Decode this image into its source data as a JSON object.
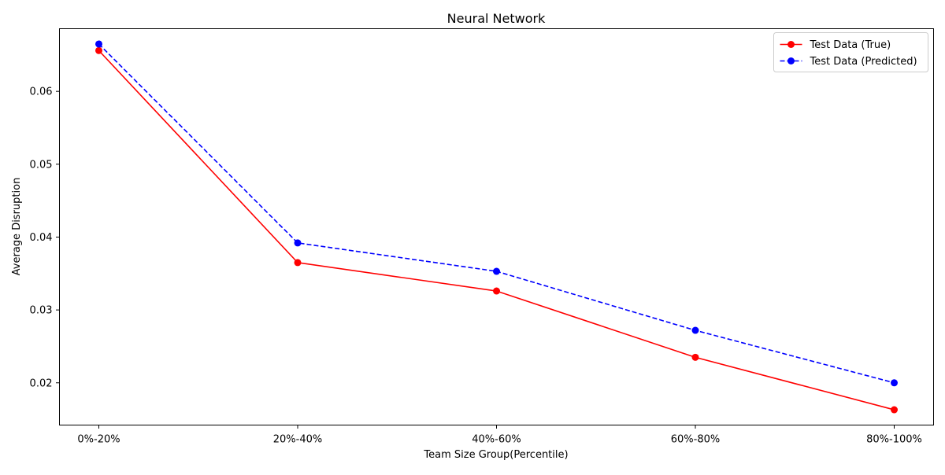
{
  "chart_data": {
    "type": "line",
    "title": "Neural Network",
    "xlabel": "Team Size Group(Percentile)",
    "ylabel": "Average Disruption",
    "categories": [
      "0%-20%",
      "20%-40%",
      "40%-60%",
      "60%-80%",
      "80%-100%"
    ],
    "yticks": [
      0.02,
      0.03,
      0.04,
      0.05,
      0.06
    ],
    "ytick_labels": [
      "0.02",
      "0.03",
      "0.04",
      "0.05",
      "0.06"
    ],
    "ylim": [
      0.0142,
      0.0686
    ],
    "grid": false,
    "legend_position": "top-right",
    "series": [
      {
        "name": "Test Data (True)",
        "values": [
          0.0656,
          0.0365,
          0.0326,
          0.0235,
          0.0163
        ],
        "color": "#ff0000",
        "line_style": "solid",
        "marker": "circle"
      },
      {
        "name": "Test Data (Predicted)",
        "values": [
          0.0665,
          0.0392,
          0.0353,
          0.0272,
          0.02
        ],
        "color": "#0000ff",
        "line_style": "dashed",
        "marker": "circle"
      }
    ]
  }
}
